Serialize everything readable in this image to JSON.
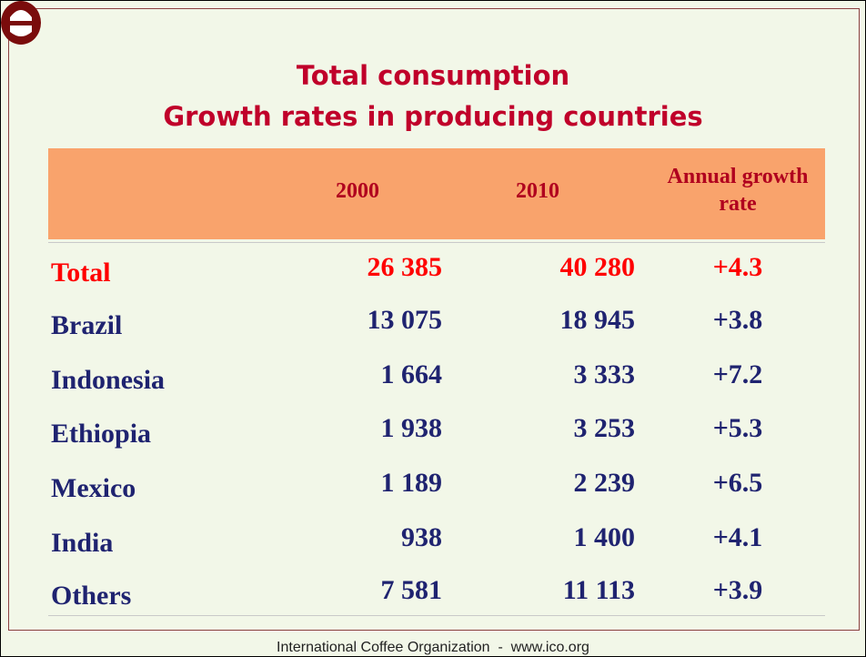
{
  "title": [
    "Total consumption",
    "Growth rates in producing countries"
  ],
  "table": {
    "header": [
      "",
      "2000",
      "2010",
      "Annual growth rate"
    ],
    "rows": [
      [
        "Total",
        "26 385",
        "40 280",
        "+4.3"
      ],
      [
        "Brazil",
        "13 075",
        "18 945",
        "+3.8"
      ],
      [
        "Indonesia",
        "1 664",
        "3 333",
        "+7.2"
      ],
      [
        "Ethiopia",
        "1 938",
        "3 253",
        "+5.3"
      ],
      [
        "Mexico",
        "1 189",
        "2 239",
        "+6.5"
      ],
      [
        "India",
        "938",
        "1 400",
        "+4.1"
      ],
      [
        "Others",
        "7 581",
        "11 113",
        "+3.9"
      ]
    ]
  },
  "footer": "International Coffee Organization  -  www.ico.org"
}
